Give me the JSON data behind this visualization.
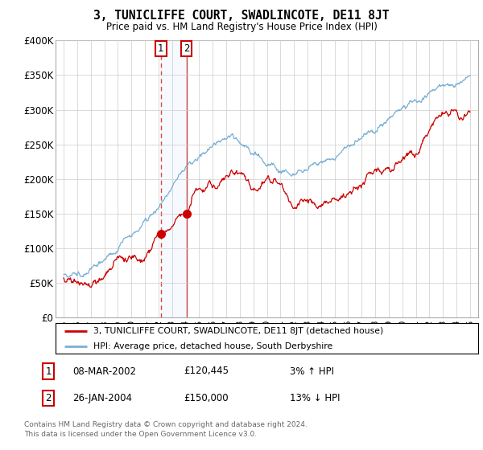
{
  "title": "3, TUNICLIFFE COURT, SWADLINCOTE, DE11 8JT",
  "subtitle": "Price paid vs. HM Land Registry's House Price Index (HPI)",
  "ylim": [
    0,
    400000
  ],
  "ytick_vals": [
    0,
    50000,
    100000,
    150000,
    200000,
    250000,
    300000,
    350000,
    400000
  ],
  "ylabel_ticks": [
    "£0",
    "£50K",
    "£100K",
    "£150K",
    "£200K",
    "£250K",
    "£300K",
    "£350K",
    "£400K"
  ],
  "red_line_label": "3, TUNICLIFFE COURT, SWADLINCOTE, DE11 8JT (detached house)",
  "blue_line_label": "HPI: Average price, detached house, South Derbyshire",
  "transactions": [
    {
      "num": 1,
      "date": "08-MAR-2002",
      "price": 120445,
      "year": 2002.18,
      "hpi_pct": "3% ↑ HPI"
    },
    {
      "num": 2,
      "date": "26-JAN-2004",
      "price": 150000,
      "year": 2004.07,
      "hpi_pct": "13% ↓ HPI"
    }
  ],
  "footnote1": "Contains HM Land Registry data © Crown copyright and database right 2024.",
  "footnote2": "This data is licensed under the Open Government Licence v3.0.",
  "red_color": "#cc0000",
  "blue_color": "#7ab0d4",
  "vline1_color": "#dd4444",
  "vline2_color": "#dd4444",
  "shade_color": "#ddeeff",
  "grid_color": "#cccccc",
  "bg_color": "#ffffff",
  "transaction_box_color": "#cc0000"
}
